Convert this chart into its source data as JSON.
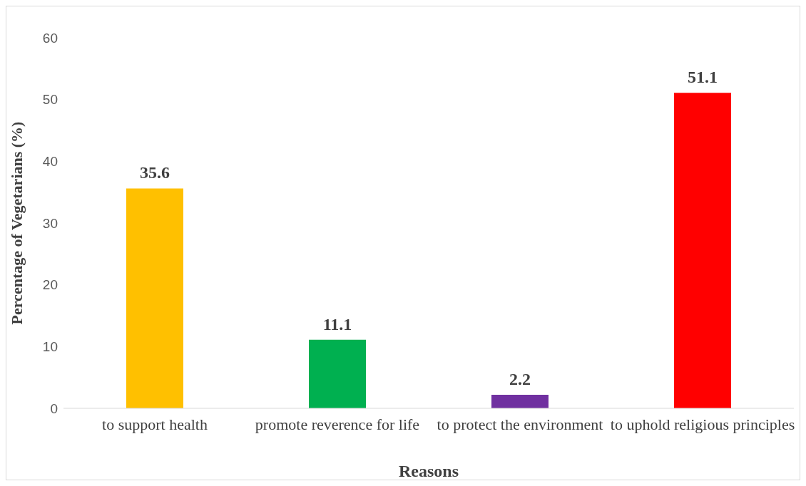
{
  "chart_data": {
    "type": "bar",
    "xlabel": "Reasons",
    "ylabel": "Percentage of Vegetarians (%)",
    "categories": [
      "to support health",
      "promote reverence for life",
      "to protect the environment",
      "to uphold religious principles"
    ],
    "values": [
      35.6,
      11.1,
      2.2,
      51.1
    ],
    "colors": [
      "#ffc000",
      "#00b050",
      "#7030a0",
      "#ff0000"
    ],
    "ylim": [
      0,
      60
    ],
    "yticks": [
      0,
      10,
      20,
      30,
      40,
      50,
      60
    ],
    "grid": false,
    "data_labels": true
  }
}
